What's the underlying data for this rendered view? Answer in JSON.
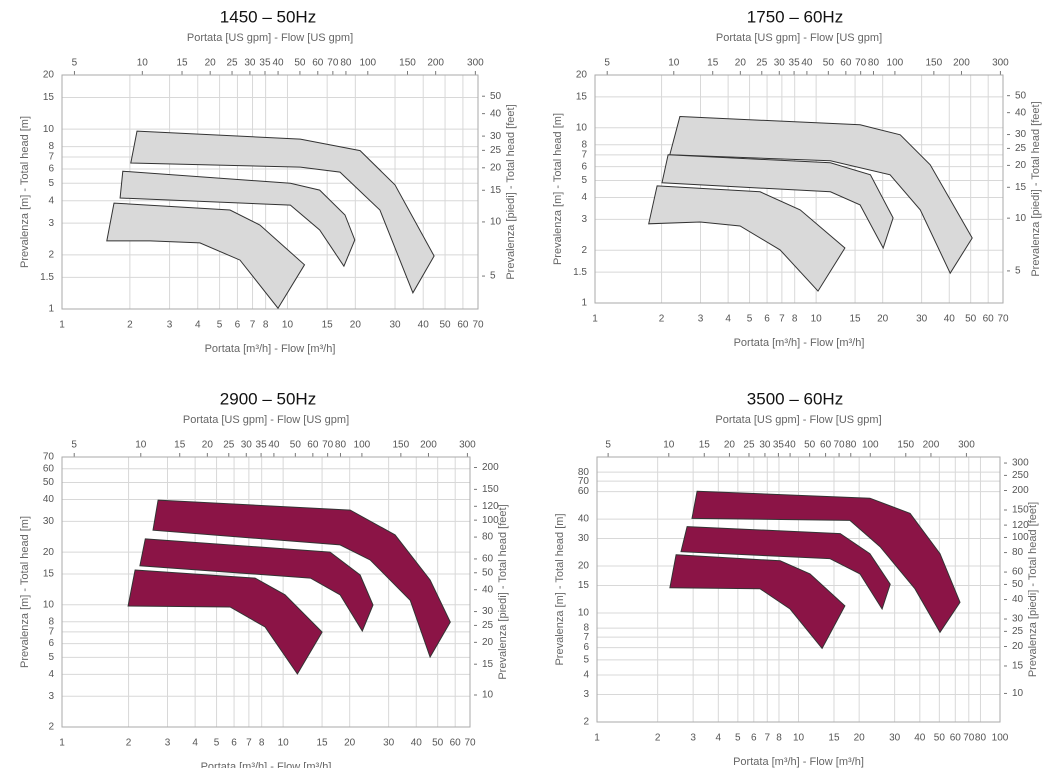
{
  "chart_data": [
    {
      "type": "polygon",
      "title": "1450 – 50Hz",
      "x_label": "Portata [m³/h] - Flow [m³/h]",
      "x2_label": "Portata [US gpm] - Flow [US gpm]",
      "y_label": "Prevalenza [m] - Total head [m]",
      "y2_label": "Prevalenza [piedi] - Total head [feet]",
      "xscale": "log",
      "yscale": "log",
      "grid": true,
      "xlim": [
        1,
        70
      ],
      "xticks": [
        1,
        2,
        3,
        4,
        5,
        6,
        7,
        8,
        10,
        15,
        20,
        30,
        40,
        50,
        60,
        70
      ],
      "ylim": [
        1,
        20
      ],
      "yticks": [
        1,
        1.5,
        2,
        3,
        4,
        5,
        6,
        7,
        8,
        10,
        15,
        20
      ],
      "x2lim": [
        4.403,
        308.2
      ],
      "x2ticks": [
        5,
        10,
        15,
        20,
        25,
        30,
        35,
        40,
        50,
        60,
        70,
        80,
        100,
        150,
        200,
        300
      ],
      "y2lim": [
        3.28,
        65.6
      ],
      "y2ticks": [
        5,
        10,
        15,
        20,
        25,
        30,
        40,
        50
      ],
      "series": [
        {
          "color": "#d9d9d9",
          "x": [
            2.15,
            11.4,
            21,
            30,
            44.7,
            36,
            25.7,
            17.1,
            11.4,
            2.02
          ],
          "values": [
            9.75,
            8.8,
            7.6,
            4.9,
            1.97,
            1.23,
            3.55,
            5.77,
            6.15,
            6.48
          ]
        },
        {
          "color": "#d9d9d9",
          "x": [
            1.86,
            10.3,
            13.9,
            18,
            19.9,
            17.8,
            13.9,
            10.3,
            1.81
          ],
          "values": [
            5.84,
            5.0,
            4.58,
            3.33,
            2.42,
            1.73,
            2.75,
            3.78,
            4.14
          ]
        },
        {
          "color": "#d9d9d9",
          "x": [
            1.7,
            5.56,
            7.55,
            11.9,
            9.08,
            6.16,
            4.09,
            2.46,
            1.58
          ],
          "values": [
            3.88,
            3.55,
            2.93,
            1.76,
            1.01,
            1.87,
            2.33,
            2.39,
            2.39
          ]
        }
      ]
    },
    {
      "type": "polygon",
      "title": "1750 – 60Hz",
      "x_label": "Portata [m³/h] - Flow [m³/h]",
      "x2_label": "Portata [US gpm] - Flow [US gpm]",
      "y_label": "Prevalenza [m] - Total head [m]",
      "y2_label": "Prevalenza [piedi] - Total head [feet]",
      "xscale": "log",
      "yscale": "log",
      "grid": true,
      "xlim": [
        1,
        70
      ],
      "xticks": [
        1,
        2,
        3,
        4,
        5,
        6,
        7,
        8,
        10,
        15,
        20,
        30,
        40,
        50,
        60,
        70
      ],
      "ylim": [
        1,
        20
      ],
      "yticks": [
        1,
        1.5,
        2,
        3,
        4,
        5,
        6,
        7,
        8,
        10,
        15,
        20
      ],
      "x2lim": [
        4.403,
        308.2
      ],
      "x2ticks": [
        5,
        10,
        15,
        20,
        25,
        30,
        35,
        40,
        50,
        60,
        70,
        80,
        100,
        150,
        200,
        300
      ],
      "y2lim": [
        3.28,
        65.6
      ],
      "y2ticks": [
        5,
        10,
        15,
        20,
        25,
        30,
        40,
        50
      ],
      "series": [
        {
          "color": "#d9d9d9",
          "x": [
            2.42,
            15.8,
            24,
            32.8,
            50.8,
            40.4,
            29.6,
            21.6,
            11.6,
            2.18
          ],
          "values": [
            11.6,
            10.4,
            9.12,
            6.15,
            2.35,
            1.48,
            3.4,
            5.39,
            6.48,
            7.01
          ]
        },
        {
          "color": "#d9d9d9",
          "x": [
            2.14,
            11.6,
            17.6,
            22.3,
            20.1,
            15.8,
            11.6,
            2.01
          ],
          "values": [
            7.01,
            6.31,
            5.39,
            3.06,
            2.06,
            3.63,
            4.31,
            4.85
          ]
        },
        {
          "color": "#d9d9d9",
          "x": [
            1.91,
            5.58,
            8.47,
            13.5,
            10.2,
            6.87,
            4.53,
            2.99,
            1.75
          ],
          "values": [
            4.66,
            4.31,
            3.4,
            2.06,
            1.17,
            2.01,
            2.75,
            2.9,
            2.83
          ]
        }
      ]
    },
    {
      "type": "polygon",
      "title": "2900 – 50Hz",
      "x_label": "Portata [m³/h] - Flow [m³/h]",
      "x2_label": "Portata [US gpm] - Flow [US gpm]",
      "y_label": "Prevalenza [m] - Total head [m]",
      "y2_label": "Prevalenza [piedi] - Total head [feet]",
      "xscale": "log",
      "yscale": "log",
      "grid": true,
      "xlim": [
        1,
        70
      ],
      "xticks": [
        1,
        2,
        3,
        4,
        5,
        6,
        7,
        8,
        10,
        15,
        20,
        30,
        40,
        50,
        60,
        70
      ],
      "ylim": [
        2,
        70
      ],
      "yticks": [
        2,
        3,
        4,
        5,
        6,
        7,
        8,
        10,
        15,
        20,
        30,
        40,
        50,
        60,
        70
      ],
      "x2lim": [
        4.403,
        308.2
      ],
      "x2ticks": [
        5,
        10,
        15,
        20,
        25,
        30,
        35,
        40,
        50,
        60,
        70,
        80,
        100,
        150,
        200,
        300
      ],
      "y2lim": [
        6.56,
        229.7
      ],
      "y2ticks": [
        10,
        15,
        20,
        25,
        30,
        40,
        50,
        60,
        80,
        100,
        120,
        150,
        200
      ],
      "series": [
        {
          "color": "#8b1446",
          "x": [
            2.72,
            20.1,
            32.1,
            46.2,
            57,
            46.2,
            37.6,
            24.8,
            18.1,
            2.58
          ],
          "values": [
            39.7,
            34.8,
            25.1,
            13.85,
            7.96,
            5.03,
            10.6,
            18.0,
            22.0,
            26.7
          ]
        },
        {
          "color": "#8b1446",
          "x": [
            2.38,
            16.3,
            22.3,
            25.5,
            22.8,
            18.1,
            13.3,
            2.25
          ],
          "values": [
            23.8,
            20.0,
            14.8,
            9.97,
            7.08,
            11.4,
            14.2,
            16.7
          ]
        },
        {
          "color": "#8b1446",
          "x": [
            2.14,
            7.47,
            10.2,
            15.0,
            11.6,
            8.29,
            5.76,
            1.99
          ],
          "values": [
            15.8,
            14.2,
            11.4,
            6.98,
            4.02,
            7.46,
            9.71,
            9.84
          ]
        }
      ]
    },
    {
      "type": "polygon",
      "title": "3500 – 60Hz",
      "x_label": "Portata [m³/h] - Flow [m³/h]",
      "x2_label": "Portata [US gpm] - Flow [US gpm]",
      "y_label": "Prevalenza [m] - Total head [m]",
      "y2_label": "Prevalenza [piedi] - Total head [feet]",
      "xscale": "log",
      "yscale": "log",
      "grid": true,
      "xlim": [
        1,
        100
      ],
      "xticks": [
        1,
        2,
        3,
        4,
        5,
        6,
        7,
        8,
        10,
        15,
        20,
        30,
        40,
        50,
        60,
        70,
        80,
        100
      ],
      "ylim": [
        2,
        100
      ],
      "yticks": [
        2,
        3,
        4,
        5,
        6,
        7,
        8,
        10,
        15,
        20,
        30,
        40,
        60,
        70,
        80
      ],
      "x2lim": [
        4.403,
        440.3
      ],
      "x2ticks": [
        5,
        10,
        15,
        20,
        25,
        30,
        35,
        40,
        50,
        60,
        70,
        80,
        100,
        150,
        200,
        300
      ],
      "y2lim": [
        6.56,
        328
      ],
      "y2ticks": [
        10,
        15,
        20,
        25,
        30,
        40,
        50,
        60,
        80,
        100,
        120,
        150,
        200,
        250,
        300
      ],
      "series": [
        {
          "color": "#8b1446",
          "x": [
            3.14,
            22.6,
            35.8,
            50.4,
            63.3,
            50.4,
            37.8,
            25.4,
            18.0,
            2.96
          ],
          "values": [
            60.3,
            54.4,
            43.5,
            24.0,
            11.7,
            7.52,
            14.3,
            26.6,
            39.2,
            40.4
          ]
        },
        {
          "color": "#8b1446",
          "x": [
            2.8,
            16.1,
            22.6,
            28.5,
            26.0,
            20.2,
            14.3,
            2.61
          ],
          "values": [
            35.8,
            32.3,
            24.0,
            15.3,
            10.6,
            17.8,
            22.3,
            24.7
          ]
        },
        {
          "color": "#8b1446",
          "x": [
            2.47,
            8.1,
            11.4,
            17.0,
            13.1,
            9.08,
            6.44,
            2.3
          ],
          "values": [
            23.6,
            21.6,
            17.8,
            11.1,
            5.93,
            10.6,
            14.3,
            14.5
          ]
        }
      ]
    }
  ]
}
